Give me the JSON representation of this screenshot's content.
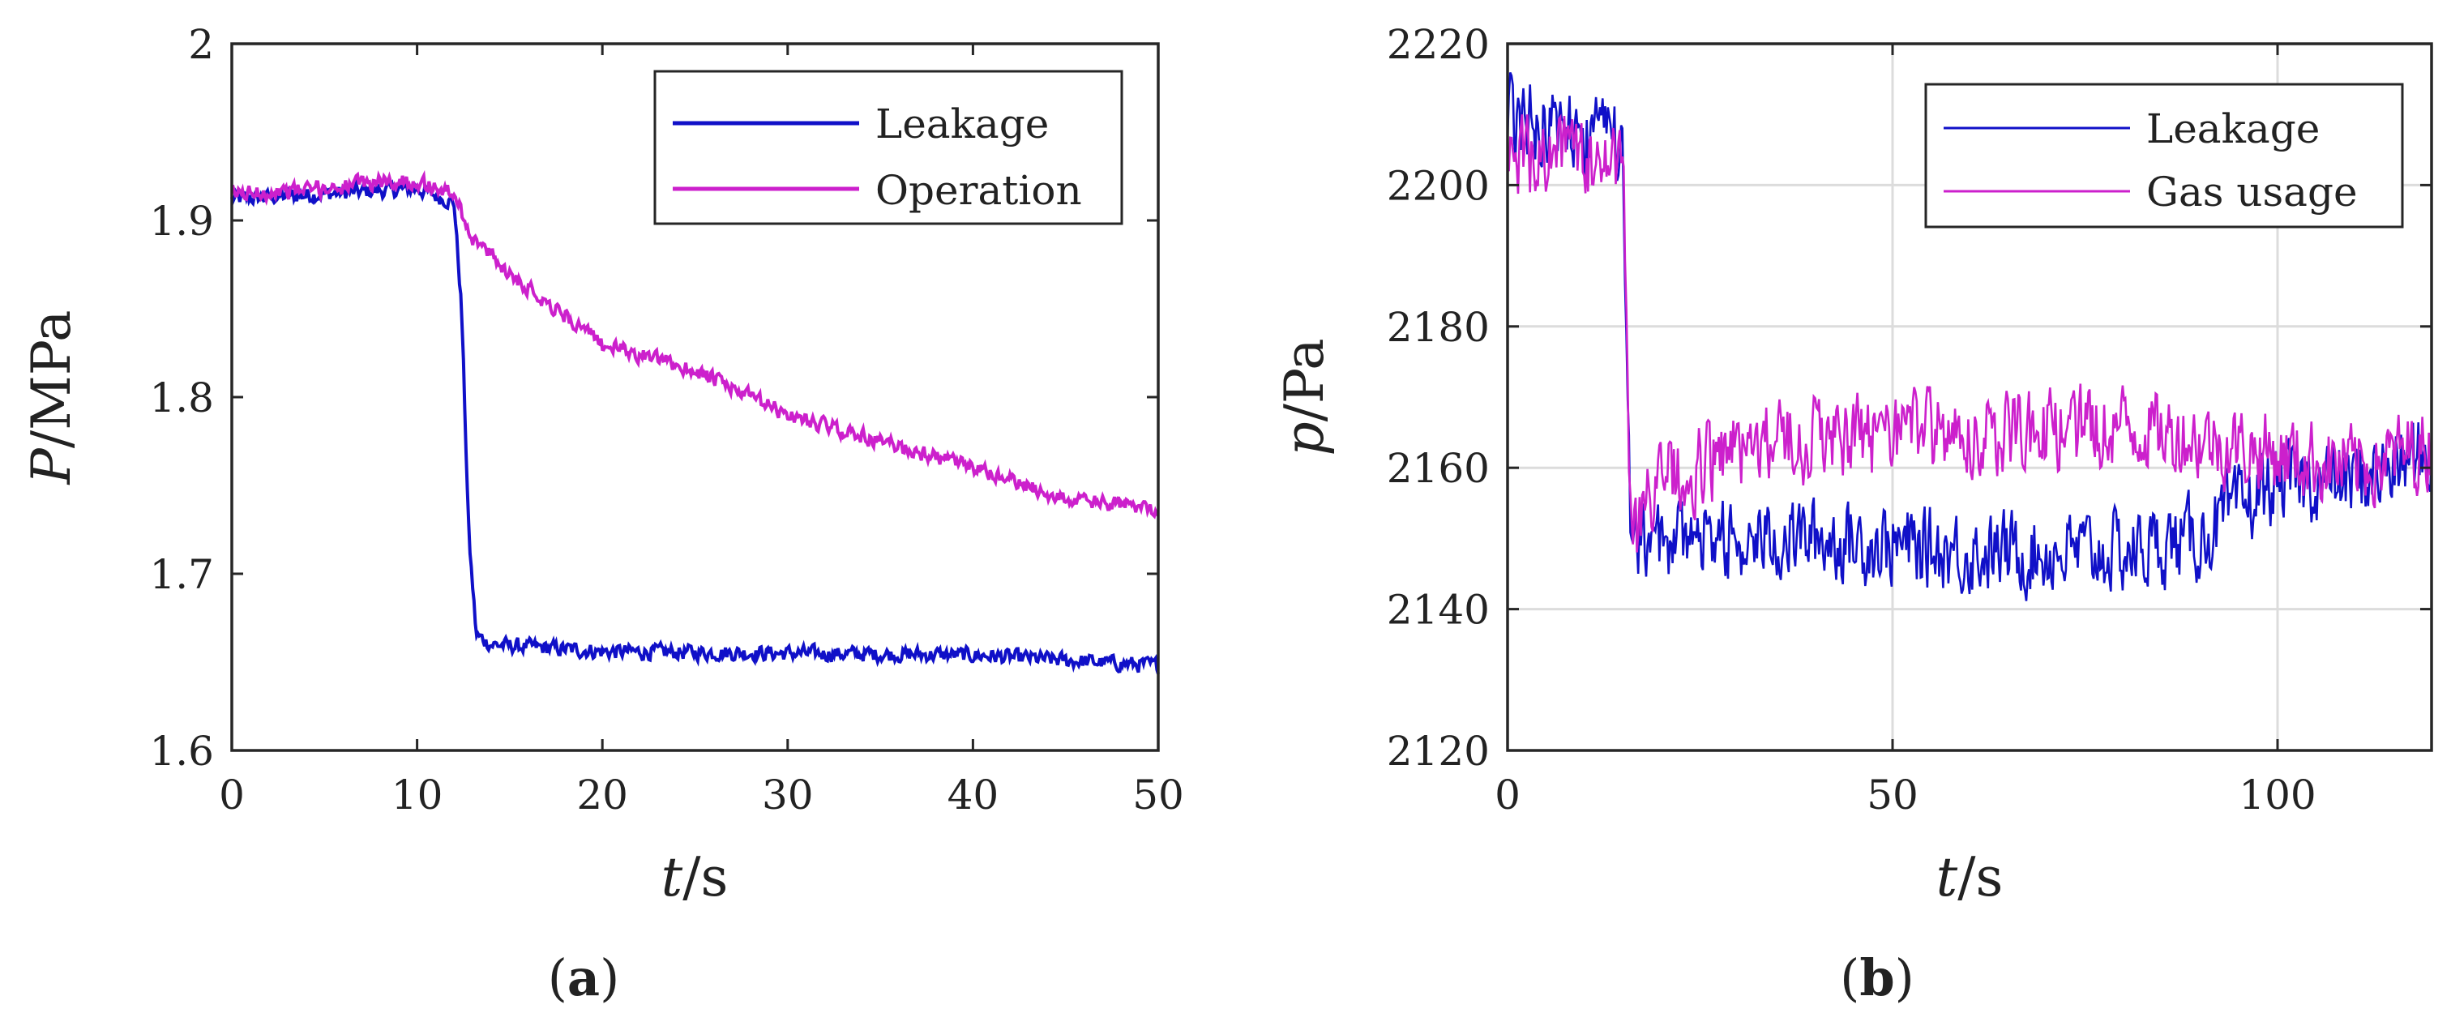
{
  "chart_data": [
    {
      "type": "line",
      "panel_label": {
        "open": "(",
        "letter": "a",
        "close": ")"
      },
      "xlabel": {
        "var": "t",
        "unit": "/s"
      },
      "ylabel": {
        "var": "P",
        "unit": "/MPa"
      },
      "xlim": [
        0,
        50
      ],
      "ylim": [
        1.6,
        2.0
      ],
      "xticks": [
        "0",
        "10",
        "20",
        "30",
        "40",
        "50"
      ],
      "yticks": [
        "1.6",
        "1.7",
        "1.8",
        "1.9",
        "2"
      ],
      "grid": false,
      "legend_position": "top-right",
      "series": [
        {
          "name": "Leakage",
          "color": "#1010C8",
          "x": [
            0,
            5,
            10,
            12,
            12.4,
            12.8,
            13.2,
            14,
            20,
            30,
            40,
            50
          ],
          "values": [
            1.912,
            1.915,
            1.918,
            1.91,
            1.85,
            1.72,
            1.665,
            1.66,
            1.656,
            1.655,
            1.654,
            1.648
          ],
          "noise": 0.006
        },
        {
          "name": "Operation",
          "color": "#CC20CC",
          "x": [
            0,
            5,
            8,
            10,
            12,
            13,
            15,
            20,
            25,
            30,
            35,
            40,
            45,
            50
          ],
          "values": [
            1.915,
            1.918,
            1.922,
            1.922,
            1.915,
            1.89,
            1.87,
            1.83,
            1.815,
            1.79,
            1.775,
            1.76,
            1.742,
            1.737
          ],
          "noise": 0.006
        }
      ]
    },
    {
      "type": "line",
      "panel_label": {
        "open": "(",
        "letter": "b",
        "close": ")"
      },
      "xlabel": {
        "var": "t",
        "unit": "/s"
      },
      "ylabel": {
        "var": "p",
        "unit": "/Pa"
      },
      "xlim": [
        0,
        120
      ],
      "ylim": [
        2120,
        2220
      ],
      "xticks": [
        "0",
        "50",
        "100"
      ],
      "yticks": [
        "2120",
        "2140",
        "2160",
        "2180",
        "2200",
        "2220"
      ],
      "grid": true,
      "legend_position": "top-right",
      "series": [
        {
          "name": "Leakage",
          "color": "#1010C8",
          "x": [
            0,
            5,
            10,
            15,
            15.3,
            16,
            20,
            40,
            60,
            80,
            90,
            100,
            110,
            120
          ],
          "values": [
            2210,
            2209,
            2207,
            2205,
            2190,
            2150,
            2150,
            2150,
            2148,
            2148,
            2150,
            2158,
            2158,
            2162
          ],
          "noise": 8
        },
        {
          "name": "Gas usage",
          "color": "#CC20CC",
          "x": [
            0,
            5,
            10,
            15,
            15.3,
            16,
            20,
            30,
            40,
            60,
            80,
            100,
            110,
            120
          ],
          "values": [
            2203,
            2204,
            2204,
            2203,
            2185,
            2150,
            2158,
            2163,
            2164,
            2165,
            2166,
            2162,
            2160,
            2163
          ],
          "noise": 8
        }
      ]
    }
  ]
}
